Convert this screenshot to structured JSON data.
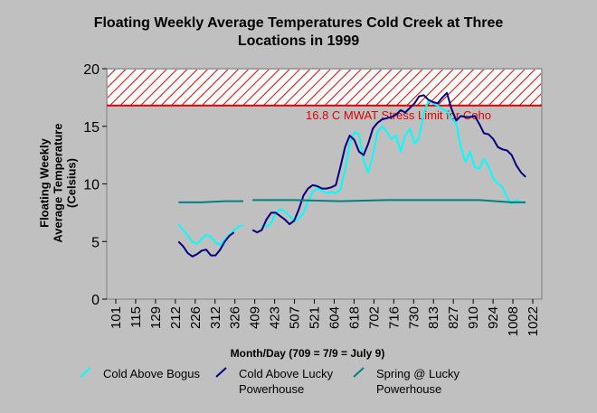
{
  "chart_data": {
    "type": "line",
    "title_line1": "Floating Weekly Average Temperatures Cold Creek at Three",
    "title_line2": "Locations in 1999",
    "ylabel_line1": "Floating Weekly",
    "ylabel_line2": "Average Temperature",
    "ylabel_line3": "(Celsius)",
    "xlabel": "Month/Day (709 = 7/9 = July 9)",
    "ylim": [
      0,
      20
    ],
    "yticks": [
      "0",
      "5",
      "10",
      "15",
      "20"
    ],
    "xticks": [
      "101",
      "115",
      "129",
      "212",
      "226",
      "312",
      "326",
      "409",
      "423",
      "507",
      "521",
      "604",
      "618",
      "702",
      "716",
      "730",
      "813",
      "827",
      "910",
      "924",
      "1008",
      "1022"
    ],
    "threshold": {
      "value": 16.8,
      "label": "16.8 C MWAT Stress Limit for Coho",
      "color": "#dd0000"
    },
    "series": [
      {
        "name": "Cold Above Bogus",
        "color": "#00ffff",
        "segments": [
          [
            [
              15,
              6.5
            ],
            [
              16,
              6.0
            ],
            [
              17,
              5.5
            ],
            [
              18,
              5.0
            ],
            [
              19,
              4.8
            ],
            [
              20,
              5.2
            ],
            [
              21,
              5.6
            ],
            [
              22,
              5.4
            ],
            [
              23,
              4.9
            ],
            [
              24,
              4.7
            ],
            [
              25,
              5.2
            ],
            [
              26,
              5.6
            ],
            [
              27,
              6.0
            ],
            [
              28,
              6.3
            ],
            [
              29,
              6.4
            ]
          ],
          [
            [
              33,
              6.4
            ],
            [
              34,
              6.3
            ],
            [
              35,
              6.6
            ],
            [
              36,
              7.5
            ],
            [
              37,
              7.8
            ],
            [
              38,
              7.6
            ],
            [
              39,
              7.2
            ],
            [
              40,
              6.8
            ],
            [
              41,
              7.0
            ],
            [
              42,
              7.5
            ],
            [
              43,
              8.5
            ],
            [
              44,
              9.3
            ],
            [
              45,
              9.6
            ],
            [
              46,
              9.4
            ],
            [
              47,
              9.2
            ],
            [
              48,
              9.3
            ],
            [
              49,
              9.2
            ],
            [
              50,
              9.5
            ],
            [
              51,
              11.2
            ],
            [
              52,
              13.5
            ],
            [
              53,
              14.5
            ],
            [
              54,
              14.3
            ],
            [
              55,
              12.0
            ],
            [
              56,
              11.0
            ],
            [
              57,
              12.5
            ],
            [
              58,
              14.5
            ],
            [
              59,
              15.0
            ],
            [
              60,
              14.5
            ],
            [
              61,
              13.9
            ],
            [
              62,
              14.2
            ],
            [
              63,
              12.8
            ],
            [
              64,
              14.2
            ],
            [
              65,
              14.8
            ],
            [
              66,
              13.5
            ],
            [
              67,
              14.0
            ],
            [
              68,
              16.2
            ],
            [
              69,
              17.2
            ],
            [
              70,
              17.0
            ],
            [
              71,
              16.8
            ],
            [
              72,
              16.5
            ],
            [
              73,
              16.3
            ],
            [
              74,
              15.6
            ],
            [
              75,
              15.3
            ],
            [
              76,
              13.2
            ],
            [
              77,
              11.9
            ],
            [
              78,
              12.8
            ],
            [
              79,
              11.5
            ],
            [
              80,
              11.3
            ],
            [
              81,
              12.2
            ],
            [
              82,
              11.5
            ],
            [
              83,
              10.5
            ],
            [
              84,
              10.0
            ],
            [
              85,
              9.7
            ],
            [
              86,
              8.8
            ],
            [
              87,
              8.3
            ],
            [
              88,
              8.6
            ],
            [
              89,
              8.4
            ]
          ]
        ]
      },
      {
        "name": "Cold Above Lucky Powerhouse",
        "color": "#000080",
        "segments": [
          [
            [
              15,
              5.0
            ],
            [
              16,
              4.6
            ],
            [
              17,
              4.0
            ],
            [
              18,
              3.7
            ],
            [
              19,
              3.9
            ],
            [
              20,
              4.2
            ],
            [
              21,
              4.3
            ],
            [
              22,
              3.8
            ],
            [
              23,
              3.8
            ],
            [
              24,
              4.3
            ],
            [
              25,
              5.0
            ],
            [
              26,
              5.5
            ],
            [
              27,
              5.8
            ]
          ],
          [
            [
              31,
              6.0
            ],
            [
              32,
              5.8
            ],
            [
              33,
              6.0
            ],
            [
              34,
              6.9
            ],
            [
              35,
              7.5
            ],
            [
              36,
              7.5
            ],
            [
              37,
              7.2
            ],
            [
              38,
              6.9
            ],
            [
              39,
              6.5
            ],
            [
              40,
              6.8
            ],
            [
              41,
              7.8
            ],
            [
              42,
              9.0
            ],
            [
              43,
              9.6
            ],
            [
              44,
              9.9
            ],
            [
              45,
              9.8
            ],
            [
              46,
              9.6
            ],
            [
              47,
              9.6
            ],
            [
              48,
              9.7
            ],
            [
              49,
              9.9
            ],
            [
              50,
              11.5
            ],
            [
              51,
              13.2
            ],
            [
              52,
              14.2
            ],
            [
              53,
              13.8
            ],
            [
              54,
              12.8
            ],
            [
              55,
              12.5
            ],
            [
              56,
              13.5
            ],
            [
              57,
              14.8
            ],
            [
              58,
              15.3
            ],
            [
              59,
              15.6
            ],
            [
              60,
              15.7
            ],
            [
              61,
              15.8
            ],
            [
              62,
              16.0
            ],
            [
              63,
              16.4
            ],
            [
              64,
              16.2
            ],
            [
              65,
              16.6
            ],
            [
              66,
              17.0
            ],
            [
              67,
              17.6
            ],
            [
              68,
              17.7
            ],
            [
              69,
              17.3
            ],
            [
              70,
              17.1
            ],
            [
              71,
              17.0
            ],
            [
              72,
              17.5
            ],
            [
              73,
              17.9
            ],
            [
              74,
              16.5
            ],
            [
              75,
              15.5
            ],
            [
              76,
              15.9
            ],
            [
              77,
              15.8
            ],
            [
              78,
              15.8
            ],
            [
              79,
              15.9
            ],
            [
              80,
              15.2
            ],
            [
              81,
              14.4
            ],
            [
              82,
              14.3
            ],
            [
              83,
              13.9
            ],
            [
              84,
              13.2
            ],
            [
              85,
              13.0
            ],
            [
              86,
              12.9
            ],
            [
              87,
              12.5
            ],
            [
              88,
              11.6
            ],
            [
              89,
              11.0
            ],
            [
              90,
              10.6
            ]
          ]
        ]
      },
      {
        "name": "Spring @ Lucky Powerhouse",
        "color": "#008080",
        "segments": [
          [
            [
              15,
              8.4
            ],
            [
              20,
              8.4
            ],
            [
              25,
              8.5
            ],
            [
              29,
              8.5
            ]
          ],
          [
            [
              31,
              8.6
            ],
            [
              40,
              8.6
            ],
            [
              50,
              8.5
            ],
            [
              60,
              8.6
            ],
            [
              70,
              8.6
            ],
            [
              80,
              8.6
            ],
            [
              87,
              8.4
            ],
            [
              90,
              8.4
            ]
          ]
        ]
      }
    ],
    "legend_placement": "bottom",
    "grid": false
  }
}
